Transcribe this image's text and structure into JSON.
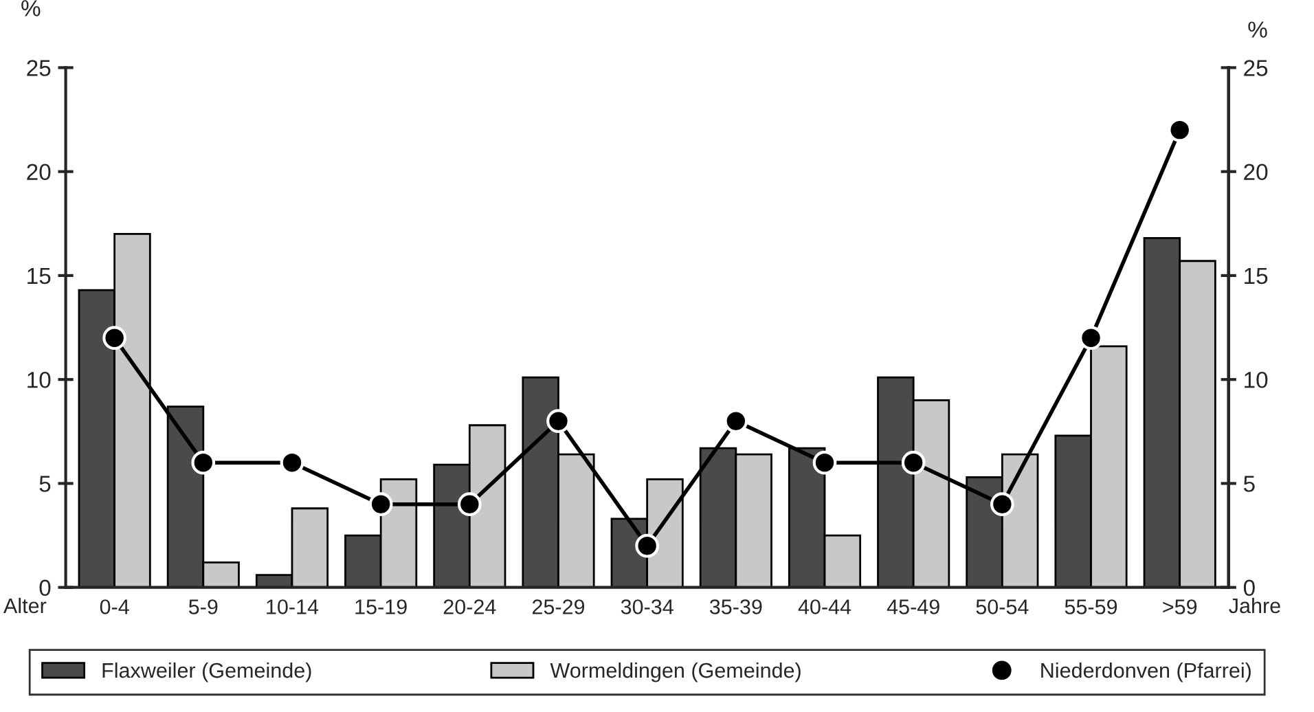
{
  "chart_data": {
    "type": "bar",
    "categories": [
      "0-4",
      "5-9",
      "10-14",
      "15-19",
      "20-24",
      "25-29",
      "30-34",
      "35-39",
      "40-44",
      "45-49",
      "50-54",
      "55-59",
      ">59"
    ],
    "xlabel": "Alter",
    "ylabel": "%",
    "y2label": "%",
    "annotations": [
      "Jahre"
    ],
    "series": [
      {
        "name": "Flaxweiler (Gemeinde)",
        "color": "#4a4a4a",
        "values": [
          14.3,
          8.7,
          0.6,
          2.5,
          5.9,
          10.1,
          3.3,
          6.7,
          6.7,
          10.1,
          5.3,
          7.3,
          16.8
        ]
      },
      {
        "name": "Wormeldingen (Gemeinde)",
        "color": "#c8c8c8",
        "values": [
          17.0,
          1.2,
          3.8,
          5.2,
          7.8,
          6.4,
          5.2,
          6.4,
          2.5,
          9.0,
          6.4,
          11.6,
          15.7
        ]
      },
      {
        "name": "Niederdonven (Pfarrei)",
        "color": "#000000",
        "type": "line",
        "marker": "circle",
        "values": [
          12,
          6,
          6,
          4,
          4,
          8,
          2,
          8,
          6,
          6,
          4,
          12,
          22
        ]
      }
    ],
    "ylim": [
      0,
      25
    ],
    "yticks": [
      0,
      5,
      10,
      15,
      20,
      25
    ],
    "y2lim": [
      0,
      25
    ],
    "y2ticks": [
      0,
      5,
      10,
      15,
      20,
      25
    ],
    "grid": false,
    "legend": "bottom"
  }
}
